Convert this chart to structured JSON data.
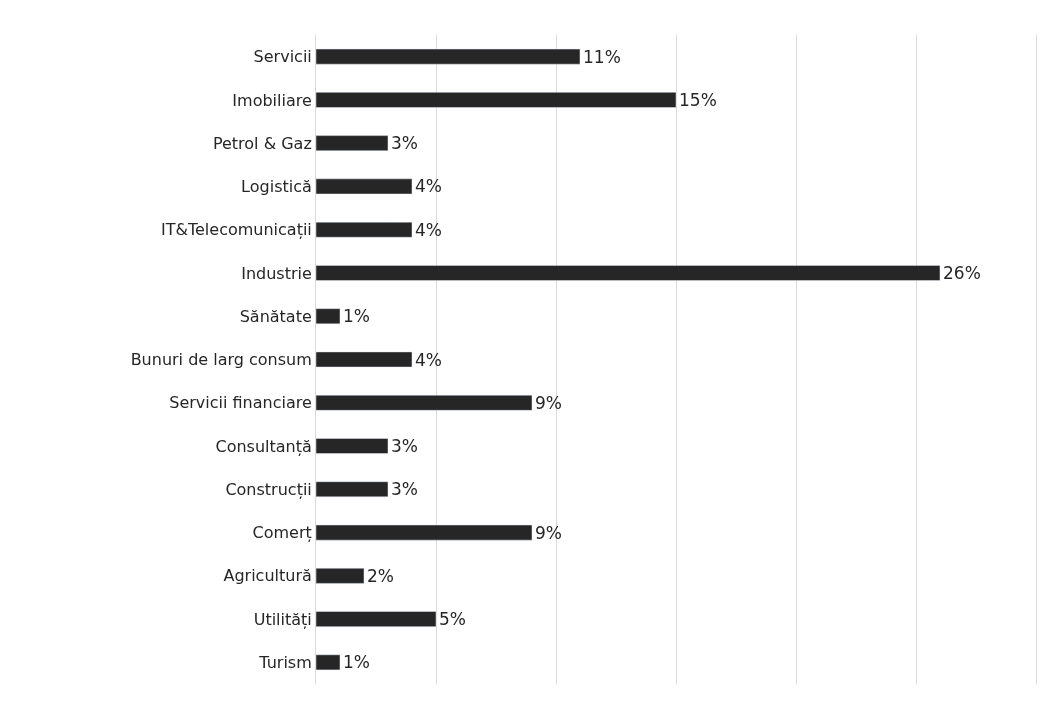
{
  "chart_data": {
    "type": "bar",
    "orientation": "horizontal",
    "categories": [
      "Servicii",
      "Imobiliare",
      "Petrol & Gaz",
      "Logistică",
      "IT&Telecomunicații",
      "Industrie",
      "Sănătate",
      "Bunuri de larg consum",
      "Servicii financiare",
      "Consultanță",
      "Construcții",
      "Comerț",
      "Agricultură",
      "Utilități",
      "Turism"
    ],
    "values": [
      11,
      15,
      3,
      4,
      4,
      26,
      1,
      4,
      9,
      3,
      3,
      9,
      2,
      5,
      1
    ],
    "value_labels": [
      "11%",
      "15%",
      "3%",
      "4%",
      "4%",
      "26%",
      "1%",
      "4%",
      "9%",
      "3%",
      "3%",
      "9%",
      "2%",
      "5%",
      "1%"
    ],
    "color": "#262626",
    "xlim": [
      0,
      30
    ],
    "xticks": [
      {
        "value": 0,
        "label": null
      },
      {
        "value": 5,
        "label": null
      },
      {
        "value": 10,
        "label": null
      },
      {
        "value": 15,
        "label": null
      },
      {
        "value": 20,
        "label": null
      },
      {
        "value": 25,
        "label": null
      },
      {
        "value": 30,
        "label": null
      }
    ],
    "grid": "x",
    "tick_labels": "y",
    "legend": false
  }
}
